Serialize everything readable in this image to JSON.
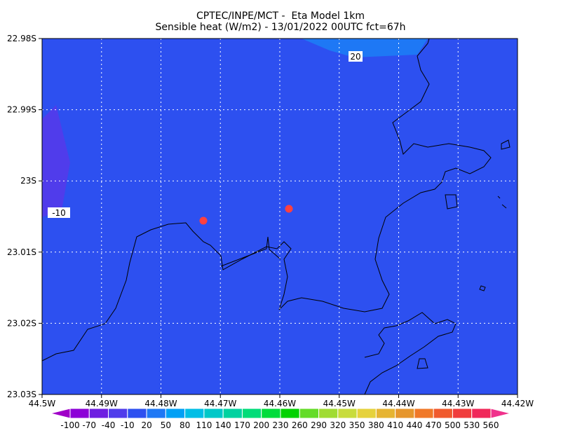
{
  "header": {
    "line1": "CPTEC/INPE/MCT -  Eta Model 1km",
    "line2": "Sensible heat (W/m2) - 13/01/2022 00UTC fct=67h"
  },
  "map": {
    "lat_ticks": [
      "22.98S",
      "22.99S",
      "23S",
      "23.01S",
      "23.02S",
      "23.03S"
    ],
    "lon_ticks": [
      "44.5W",
      "44.49W",
      "44.48W",
      "44.47W",
      "44.46W",
      "44.45W",
      "44.44W",
      "44.43W",
      "44.42W"
    ],
    "contour_labels": [
      "20",
      "-10"
    ]
  },
  "colorbar": {
    "labels": [
      -100,
      -70,
      -40,
      -10,
      20,
      50,
      80,
      110,
      140,
      170,
      200,
      230,
      260,
      290,
      320,
      350,
      380,
      410,
      440,
      470,
      500,
      530,
      560
    ],
    "colors": [
      "#a000c8",
      "#8c00d7",
      "#6e1ee1",
      "#503ceb",
      "#2d50f0",
      "#1e78f5",
      "#00a0f5",
      "#00bee6",
      "#00c8c8",
      "#00d2a0",
      "#00dc78",
      "#00dc3c",
      "#00d200",
      "#64dc28",
      "#a0dc32",
      "#c8dc3c",
      "#e6d23c",
      "#e6b432",
      "#e6962d",
      "#f07828",
      "#f05a2d",
      "#f03c3c",
      "#f0285a",
      "#f0328c"
    ]
  }
}
